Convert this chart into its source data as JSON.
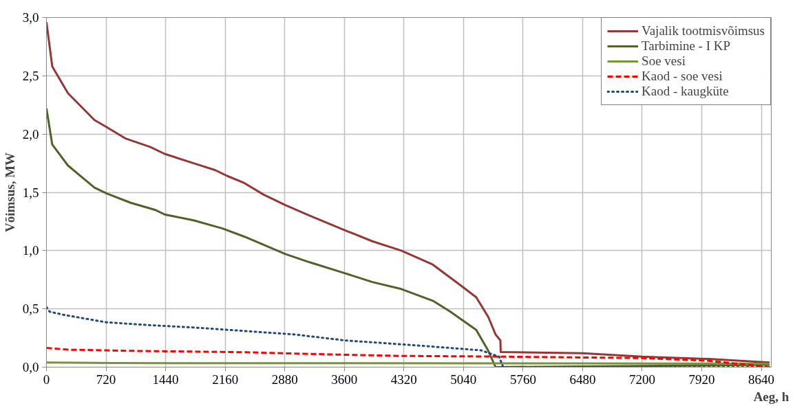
{
  "chart_data": {
    "type": "line",
    "xlabel": "Aeg, h",
    "ylabel": "Võimsus, MW",
    "xlim": [
      0,
      8760
    ],
    "xticks": [
      0,
      720,
      1440,
      2160,
      2880,
      3600,
      4320,
      5040,
      5760,
      6480,
      7200,
      7920,
      8640
    ],
    "ylim": [
      0,
      3
    ],
    "yticks": [
      {
        "value": 0,
        "label": "0,0"
      },
      {
        "value": 0.5,
        "label": "0,5"
      },
      {
        "value": 1,
        "label": "1,0"
      },
      {
        "value": 1.5,
        "label": "1,5"
      },
      {
        "value": 2,
        "label": "2,0"
      },
      {
        "value": 2.5,
        "label": "2,5"
      },
      {
        "value": 3,
        "label": "3,0"
      }
    ],
    "grid": true,
    "legend": "top right",
    "marker": "none",
    "series": [
      {
        "name": "Vajalik tootmisvõimsus",
        "color": "#953735",
        "line_style": "solid",
        "x": [
          0,
          70,
          260,
          580,
          727,
          961,
          1253,
          1428,
          1778,
          2041,
          2187,
          2391,
          2625,
          2888,
          3180,
          3589,
          3939,
          4289,
          4669,
          4990,
          5194,
          5340,
          5428,
          5486,
          5490,
          6480,
          7200,
          8000,
          8740
        ],
        "values": [
          2.96,
          2.58,
          2.35,
          2.12,
          2.06,
          1.96,
          1.89,
          1.83,
          1.75,
          1.69,
          1.64,
          1.58,
          1.48,
          1.39,
          1.3,
          1.18,
          1.08,
          1.0,
          0.88,
          0.71,
          0.6,
          0.43,
          0.28,
          0.23,
          0.13,
          0.12,
          0.09,
          0.07,
          0.04
        ]
      },
      {
        "name": "Tarbimine - I KP",
        "color": "#4f6228",
        "line_style": "solid",
        "x": [
          0,
          70,
          260,
          580,
          727,
          1019,
          1311,
          1428,
          1778,
          2128,
          2391,
          2625,
          2888,
          3180,
          3589,
          3939,
          4289,
          4669,
          4872,
          5194,
          5340,
          5428,
          8740
        ],
        "values": [
          2.22,
          1.91,
          1.73,
          1.54,
          1.49,
          1.41,
          1.35,
          1.31,
          1.26,
          1.19,
          1.12,
          1.05,
          0.97,
          0.9,
          0.81,
          0.73,
          0.67,
          0.57,
          0.48,
          0.32,
          0.14,
          0.0,
          0.02
        ]
      },
      {
        "name": "Soe vesi",
        "color": "#77933c",
        "line_style": "solid",
        "x": [
          0,
          800,
          8740
        ],
        "values": [
          0.04,
          0.035,
          0.03
        ]
      },
      {
        "name": "Kaod - soe vesi",
        "color": "#ff0000",
        "line_style": "dashed",
        "x": [
          0,
          260,
          1000,
          2400,
          3180,
          4289,
          5200,
          5760,
          7200,
          8000,
          8740
        ],
        "values": [
          0.165,
          0.15,
          0.14,
          0.128,
          0.113,
          0.096,
          0.092,
          0.088,
          0.078,
          0.055,
          0.0
        ]
      },
      {
        "name": "Kaod - kaugküte",
        "color": "#1f497d",
        "line_style": "dotted",
        "x": [
          0,
          40,
          200,
          720,
          1250,
          1780,
          2400,
          3000,
          3600,
          4669,
          5254,
          5470,
          5520,
          8740
        ],
        "values": [
          0.515,
          0.475,
          0.45,
          0.385,
          0.36,
          0.34,
          0.31,
          0.28,
          0.23,
          0.176,
          0.144,
          0.09,
          0.0,
          0.0
        ]
      }
    ]
  }
}
